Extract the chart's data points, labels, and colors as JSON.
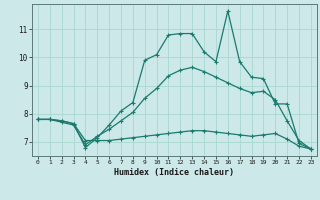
{
  "xlabel": "Humidex (Indice chaleur)",
  "background_color": "#cce8e8",
  "grid_color": "#b0d8d8",
  "line_color": "#1a7a6e",
  "x_values": [
    0,
    1,
    2,
    3,
    4,
    5,
    6,
    7,
    8,
    9,
    10,
    11,
    12,
    13,
    14,
    15,
    16,
    17,
    18,
    19,
    20,
    21,
    22,
    23
  ],
  "line1": [
    7.8,
    7.8,
    7.75,
    7.65,
    7.05,
    7.05,
    7.05,
    7.1,
    7.15,
    7.2,
    7.25,
    7.3,
    7.35,
    7.4,
    7.4,
    7.35,
    7.3,
    7.25,
    7.2,
    7.25,
    7.3,
    7.1,
    6.85,
    6.75
  ],
  "line2": [
    7.8,
    7.8,
    7.7,
    7.6,
    6.9,
    7.2,
    7.45,
    7.75,
    8.05,
    8.55,
    8.9,
    9.35,
    9.55,
    9.65,
    9.5,
    9.3,
    9.1,
    8.9,
    8.75,
    8.8,
    8.5,
    7.75,
    7.05,
    6.75
  ],
  "line3": [
    7.8,
    7.8,
    7.75,
    7.65,
    6.8,
    7.15,
    7.6,
    8.1,
    8.4,
    9.9,
    10.1,
    10.8,
    10.85,
    10.85,
    10.2,
    9.85,
    11.65,
    9.85,
    9.3,
    9.25,
    8.35,
    8.35,
    6.95,
    6.75
  ],
  "ylim": [
    6.5,
    11.9
  ],
  "yticks": [
    7,
    8,
    9,
    10,
    11
  ],
  "xlim": [
    -0.5,
    23.5
  ]
}
